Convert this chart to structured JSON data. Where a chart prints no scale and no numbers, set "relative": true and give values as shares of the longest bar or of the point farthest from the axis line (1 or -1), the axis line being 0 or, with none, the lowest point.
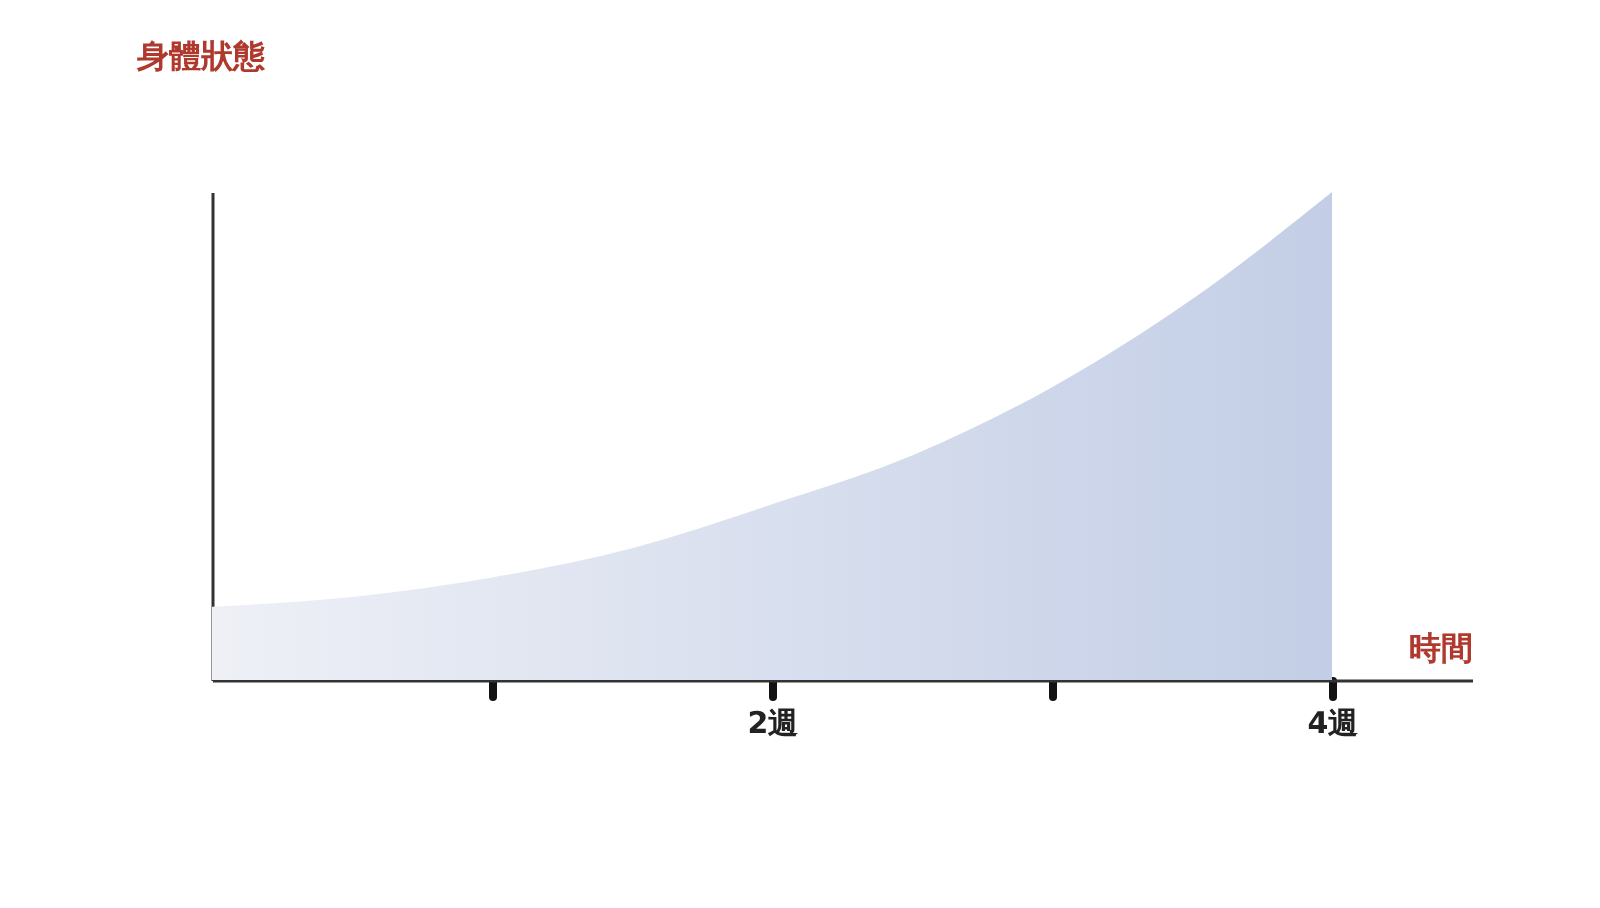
{
  "chart_data": {
    "type": "area",
    "relative": true,
    "xlabel": "時間",
    "ylabel": "身體狀態",
    "xlim": [
      0,
      4.5
    ],
    "xticks": [
      {
        "value": 1,
        "label": null
      },
      {
        "value": 2,
        "label": "2週"
      },
      {
        "value": 3,
        "label": null
      },
      {
        "value": 4,
        "label": "4週"
      }
    ],
    "x": [
      0,
      0.5,
      1,
      1.5,
      2,
      2.5,
      3,
      3.5,
      4
    ],
    "series": [
      {
        "color": "#c3cee6",
        "values": [
          0.15,
          0.17,
          0.21,
          0.27,
          0.36,
          0.46,
          0.6,
          0.78,
          1.0
        ]
      }
    ],
    "grid": false
  }
}
